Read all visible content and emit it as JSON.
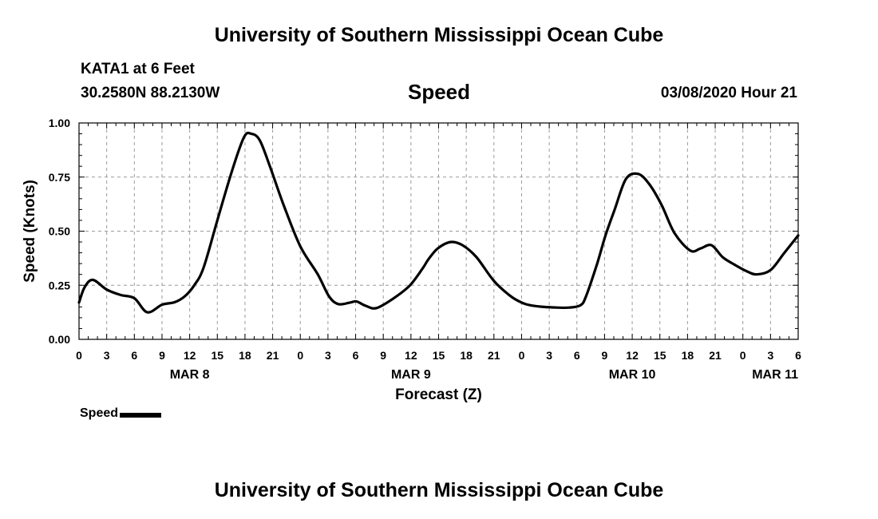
{
  "page": {
    "title_top": "University of Southern Mississippi Ocean Cube",
    "title_bottom": "University of Southern Mississippi Ocean Cube",
    "station": "KATA1 at 6 Feet",
    "coordinates": "30.2580N 88.2130W",
    "metric": "Speed",
    "datetime": "03/08/2020 Hour 21"
  },
  "chart_data": {
    "type": "line",
    "title": "Speed",
    "xlabel": "Forecast (Z)",
    "ylabel": "Speed (Knots)",
    "x_unit": "hours since MAR 8 00Z",
    "xlim": [
      0,
      78
    ],
    "ylim": [
      0,
      1
    ],
    "grid": true,
    "x_ticks": [
      0,
      3,
      6,
      9,
      12,
      15,
      18,
      21,
      24,
      27,
      30,
      33,
      36,
      39,
      42,
      45,
      48,
      51,
      54,
      57,
      60,
      63,
      66,
      69,
      72,
      75,
      78
    ],
    "x_tick_labels": [
      "0",
      "3",
      "6",
      "9",
      "12",
      "15",
      "18",
      "21",
      "0",
      "3",
      "6",
      "9",
      "12",
      "15",
      "18",
      "21",
      "0",
      "3",
      "6",
      "9",
      "12",
      "15",
      "18",
      "21",
      "0",
      "3",
      "6"
    ],
    "y_ticks": [
      0,
      0.25,
      0.5,
      0.75,
      1.0
    ],
    "y_tick_labels": [
      "0.00",
      "0.25",
      "0.50",
      "0.75",
      "1.00"
    ],
    "day_labels": [
      {
        "hour": 12,
        "label": "MAR 8"
      },
      {
        "hour": 36,
        "label": "MAR 9"
      },
      {
        "hour": 60,
        "label": "MAR 10"
      },
      {
        "hour": 78,
        "label": "MAR 11"
      }
    ],
    "legend": [
      {
        "name": "Speed",
        "color": "#000000"
      }
    ],
    "series": [
      {
        "name": "Speed",
        "color": "#000000",
        "x": [
          0,
          0.6,
          1.5,
          3,
          4.5,
          6,
          7.4,
          9,
          10.4,
          11.5,
          12.5,
          13.5,
          15,
          16.6,
          17.9,
          18.7,
          19.6,
          20.7,
          22.2,
          24,
          25.9,
          27.1,
          28.1,
          29.4,
          30.1,
          31.1,
          32.3,
          34.3,
          35.9,
          37.3,
          37.9,
          38.9,
          40.3,
          41.6,
          43.1,
          45,
          46.8,
          48,
          48.9,
          50.4,
          51.8,
          53.2,
          54.4,
          55,
          56.2,
          57.1,
          58.1,
          59.3,
          60.6,
          61.8,
          63.2,
          64.6,
          66.3,
          67.4,
          68.6,
          69.8,
          71.1,
          72.4,
          73.5,
          75,
          76.5,
          78
        ],
        "y": [
          0.17,
          0.24,
          0.275,
          0.23,
          0.205,
          0.19,
          0.125,
          0.16,
          0.172,
          0.2,
          0.25,
          0.33,
          0.55,
          0.78,
          0.935,
          0.95,
          0.92,
          0.8,
          0.62,
          0.43,
          0.3,
          0.2,
          0.163,
          0.17,
          0.175,
          0.155,
          0.145,
          0.195,
          0.25,
          0.33,
          0.37,
          0.42,
          0.45,
          0.435,
          0.38,
          0.27,
          0.2,
          0.17,
          0.158,
          0.15,
          0.147,
          0.147,
          0.158,
          0.2,
          0.35,
          0.48,
          0.6,
          0.74,
          0.765,
          0.72,
          0.62,
          0.49,
          0.41,
          0.42,
          0.435,
          0.38,
          0.345,
          0.315,
          0.3,
          0.32,
          0.4,
          0.48
        ]
      }
    ]
  }
}
